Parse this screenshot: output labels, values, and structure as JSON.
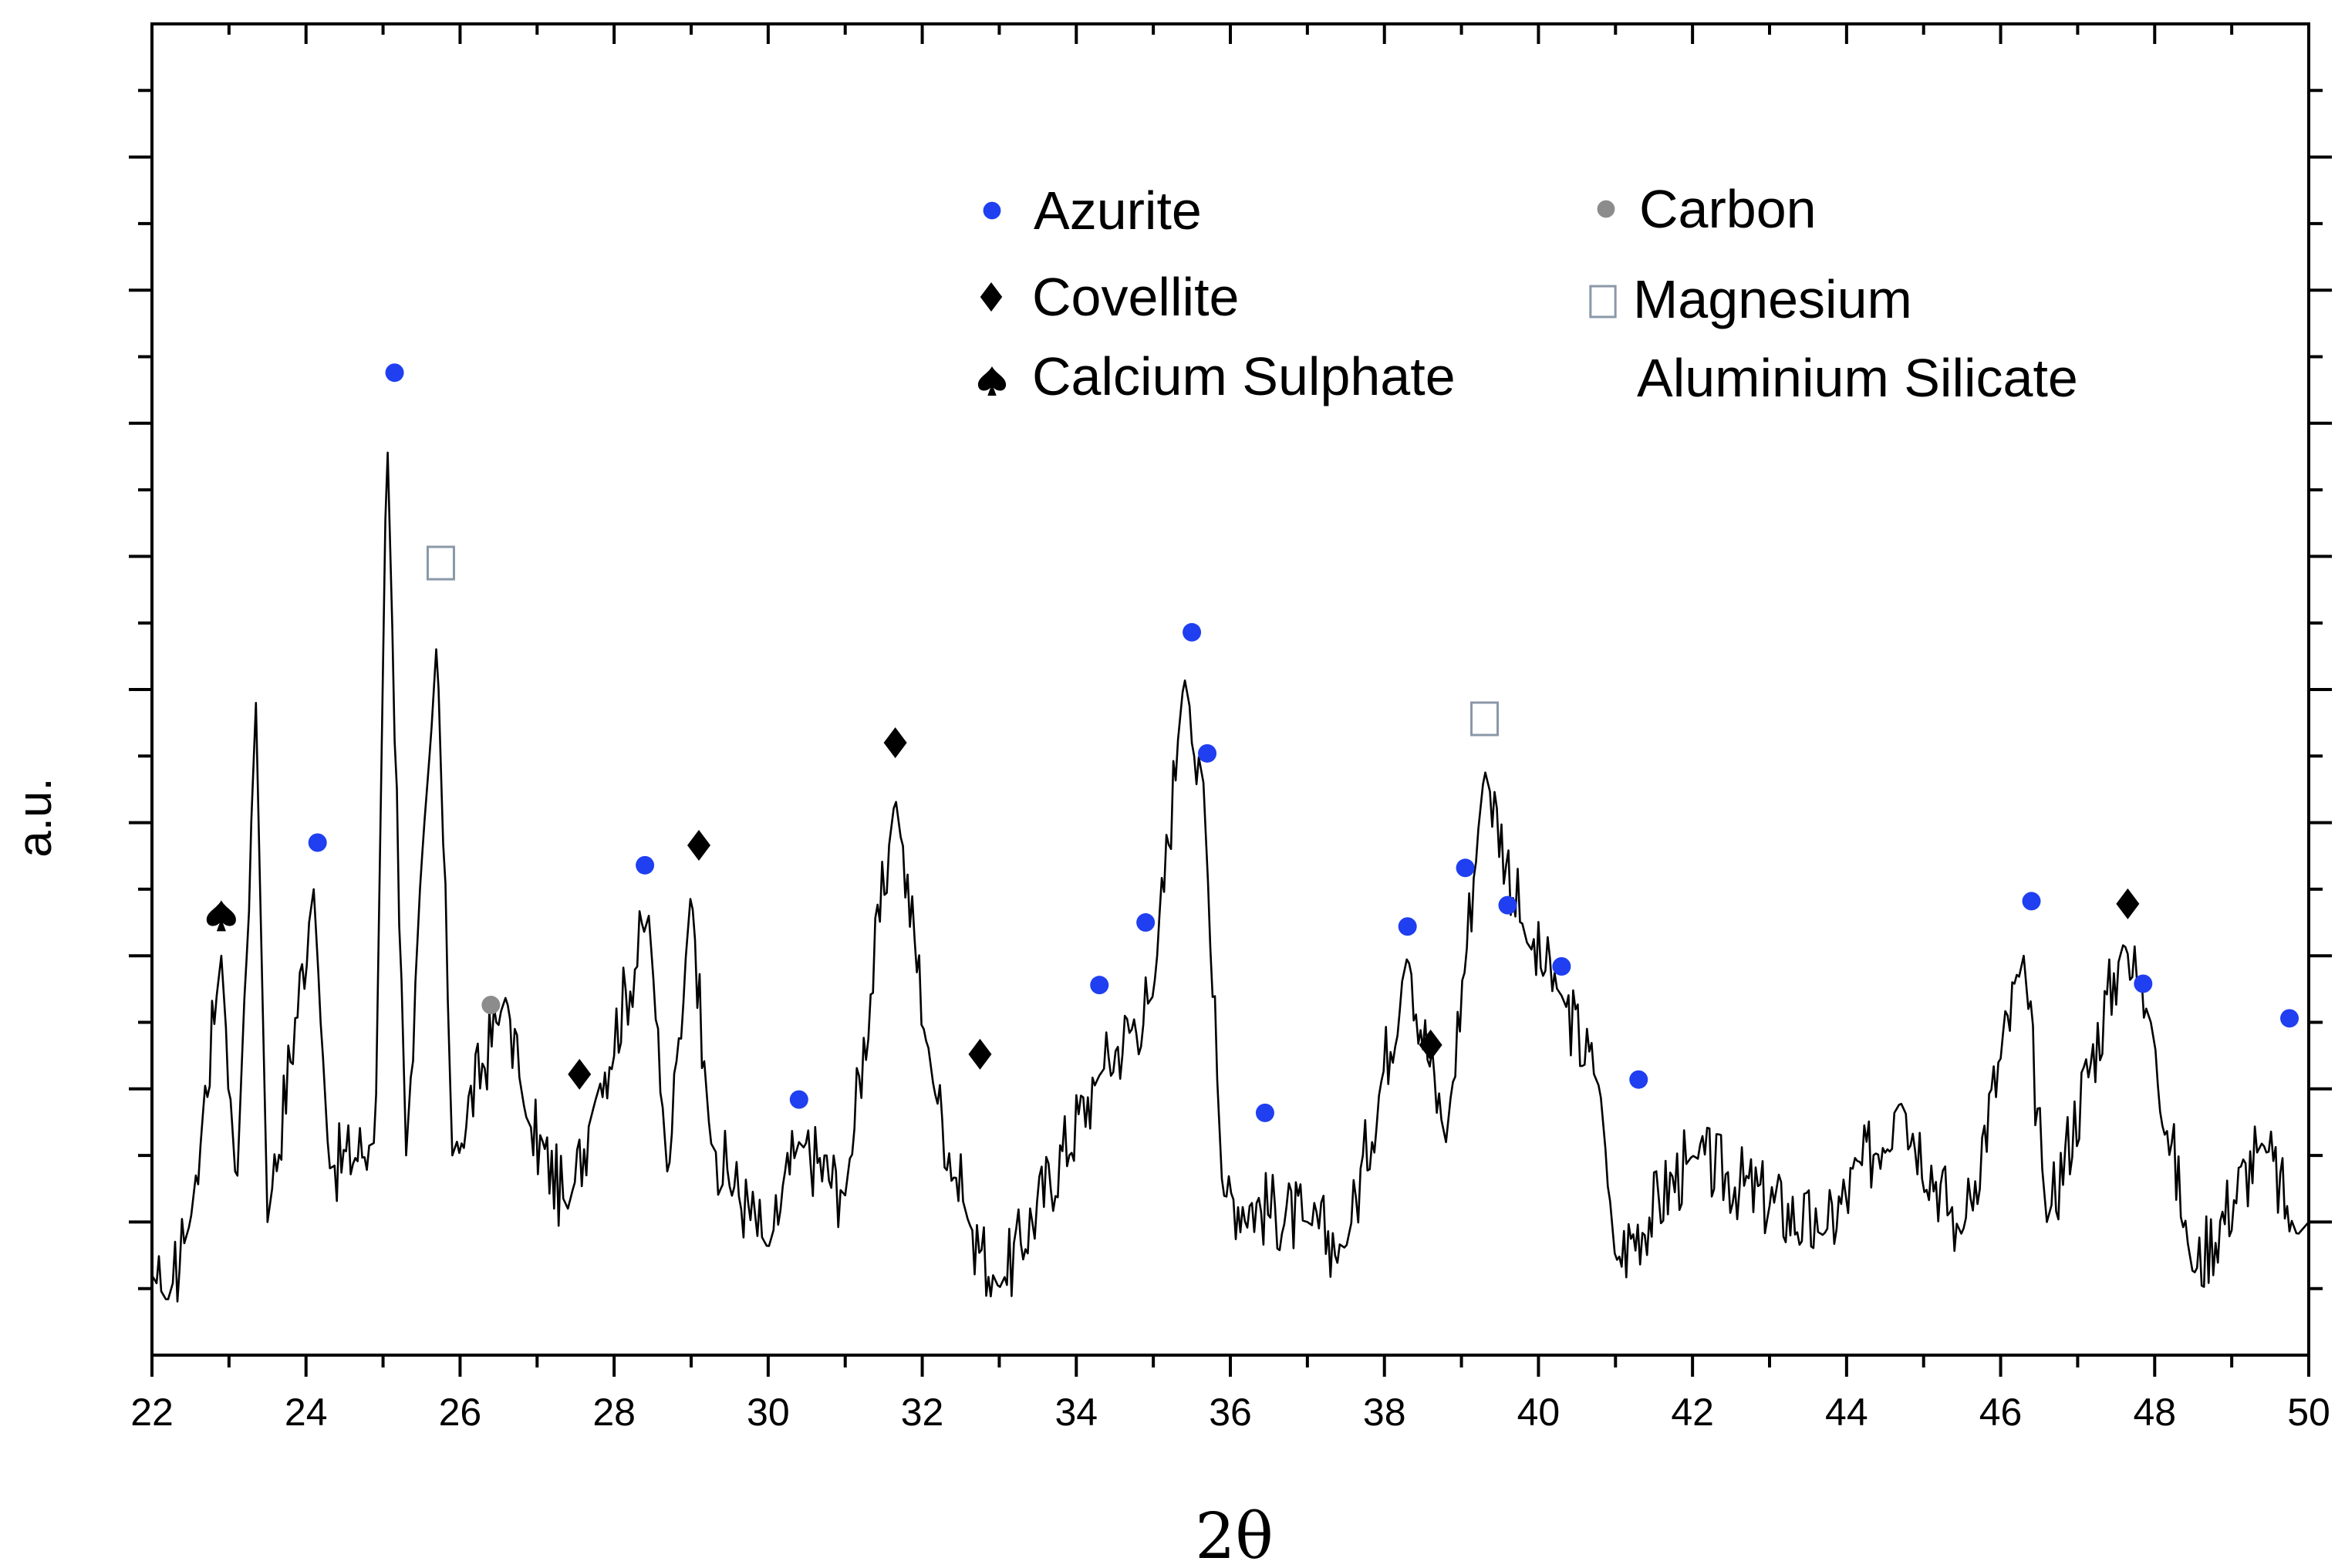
{
  "chart_data": {
    "type": "line",
    "title": "",
    "xlabel": "2θ",
    "ylabel": "a.u.",
    "xlim": [
      22,
      50
    ],
    "ylim": [
      0,
      100
    ],
    "x_ticks": [
      22,
      24,
      26,
      28,
      30,
      32,
      34,
      36,
      38,
      40,
      42,
      44,
      46,
      48,
      50
    ],
    "grid": false,
    "colors": {
      "azurite": "#1f3ff0",
      "carbon": "#8c8c8c",
      "magnesium": "#8a98a8",
      "line": "#000000"
    },
    "legend": {
      "placement": "top-right",
      "entries": [
        {
          "symbol": "azurite",
          "label": "Azurite"
        },
        {
          "symbol": "carbon",
          "label": "Carbon"
        },
        {
          "symbol": "covellite",
          "label": "Covellite"
        },
        {
          "symbol": "magnesium",
          "label": "Magnesium",
          "label_line2": "Aluminium Silicate"
        },
        {
          "symbol": "calcium",
          "label": "Calcium Sulphate"
        }
      ]
    },
    "peaks": [
      {
        "x": 22.0,
        "y": 6
      },
      {
        "x": 22.2,
        "y": 4
      },
      {
        "x": 22.5,
        "y": 10
      },
      {
        "x": 22.9,
        "y": 30
      },
      {
        "x": 23.1,
        "y": 12
      },
      {
        "x": 23.35,
        "y": 49
      },
      {
        "x": 23.5,
        "y": 10
      },
      {
        "x": 24.1,
        "y": 35
      },
      {
        "x": 24.3,
        "y": 14
      },
      {
        "x": 24.9,
        "y": 16
      },
      {
        "x": 25.05,
        "y": 70
      },
      {
        "x": 25.3,
        "y": 15
      },
      {
        "x": 25.7,
        "y": 54
      },
      {
        "x": 25.9,
        "y": 15
      },
      {
        "x": 26.6,
        "y": 27
      },
      {
        "x": 26.85,
        "y": 18
      },
      {
        "x": 27.4,
        "y": 11
      },
      {
        "x": 27.75,
        "y": 19
      },
      {
        "x": 28.45,
        "y": 33
      },
      {
        "x": 28.7,
        "y": 13
      },
      {
        "x": 29.0,
        "y": 35
      },
      {
        "x": 29.25,
        "y": 16
      },
      {
        "x": 30.0,
        "y": 8
      },
      {
        "x": 30.4,
        "y": 16
      },
      {
        "x": 31.0,
        "y": 12
      },
      {
        "x": 31.65,
        "y": 42
      },
      {
        "x": 32.15,
        "y": 20
      },
      {
        "x": 32.6,
        "y": 10
      },
      {
        "x": 33.0,
        "y": 5
      },
      {
        "x": 34.3,
        "y": 21
      },
      {
        "x": 35.0,
        "y": 27
      },
      {
        "x": 35.4,
        "y": 51
      },
      {
        "x": 35.65,
        "y": 43
      },
      {
        "x": 35.9,
        "y": 12
      },
      {
        "x": 37.0,
        "y": 10
      },
      {
        "x": 37.5,
        "y": 8
      },
      {
        "x": 38.3,
        "y": 30
      },
      {
        "x": 38.8,
        "y": 16
      },
      {
        "x": 39.3,
        "y": 44
      },
      {
        "x": 39.85,
        "y": 31
      },
      {
        "x": 40.3,
        "y": 27
      },
      {
        "x": 40.8,
        "y": 20
      },
      {
        "x": 41.0,
        "y": 7
      },
      {
        "x": 42.0,
        "y": 15
      },
      {
        "x": 43.7,
        "y": 9
      },
      {
        "x": 44.7,
        "y": 19
      },
      {
        "x": 45.5,
        "y": 9
      },
      {
        "x": 46.3,
        "y": 30
      },
      {
        "x": 46.6,
        "y": 10
      },
      {
        "x": 47.6,
        "y": 31
      },
      {
        "x": 47.95,
        "y": 25
      },
      {
        "x": 48.5,
        "y": 6
      },
      {
        "x": 49.4,
        "y": 16
      },
      {
        "x": 49.85,
        "y": 9
      },
      {
        "x": 50.0,
        "y": 10
      }
    ],
    "markers": [
      {
        "mineral": "calcium",
        "x": 22.9,
        "y": 33
      },
      {
        "mineral": "azurite",
        "x": 24.15,
        "y": 38.5
      },
      {
        "mineral": "azurite",
        "x": 25.15,
        "y": 73.8
      },
      {
        "mineral": "magnesium",
        "x": 25.75,
        "y": 59.5
      },
      {
        "mineral": "carbon",
        "x": 26.4,
        "y": 26.3
      },
      {
        "mineral": "covellite",
        "x": 27.55,
        "y": 21.1
      },
      {
        "mineral": "azurite",
        "x": 28.4,
        "y": 36.8
      },
      {
        "mineral": "covellite",
        "x": 29.1,
        "y": 38.3
      },
      {
        "mineral": "azurite",
        "x": 30.4,
        "y": 19.2
      },
      {
        "mineral": "covellite",
        "x": 31.65,
        "y": 46
      },
      {
        "mineral": "covellite",
        "x": 32.75,
        "y": 22.6
      },
      {
        "mineral": "azurite",
        "x": 34.3,
        "y": 27.8
      },
      {
        "mineral": "azurite",
        "x": 34.9,
        "y": 32.5
      },
      {
        "mineral": "azurite",
        "x": 35.5,
        "y": 54.3
      },
      {
        "mineral": "azurite",
        "x": 35.7,
        "y": 45.2
      },
      {
        "mineral": "azurite",
        "x": 36.45,
        "y": 18.2
      },
      {
        "mineral": "azurite",
        "x": 38.3,
        "y": 32.2
      },
      {
        "mineral": "covellite",
        "x": 38.6,
        "y": 23.3
      },
      {
        "mineral": "azurite",
        "x": 39.05,
        "y": 36.6
      },
      {
        "mineral": "magnesium",
        "x": 39.3,
        "y": 47.8
      },
      {
        "mineral": "azurite",
        "x": 39.6,
        "y": 33.8
      },
      {
        "mineral": "azurite",
        "x": 40.3,
        "y": 29.2
      },
      {
        "mineral": "azurite",
        "x": 41.3,
        "y": 20.7
      },
      {
        "mineral": "azurite",
        "x": 46.4,
        "y": 34.1
      },
      {
        "mineral": "covellite",
        "x": 47.65,
        "y": 33.9
      },
      {
        "mineral": "azurite",
        "x": 47.85,
        "y": 27.9
      },
      {
        "mineral": "azurite",
        "x": 49.75,
        "y": 25.3
      }
    ]
  }
}
